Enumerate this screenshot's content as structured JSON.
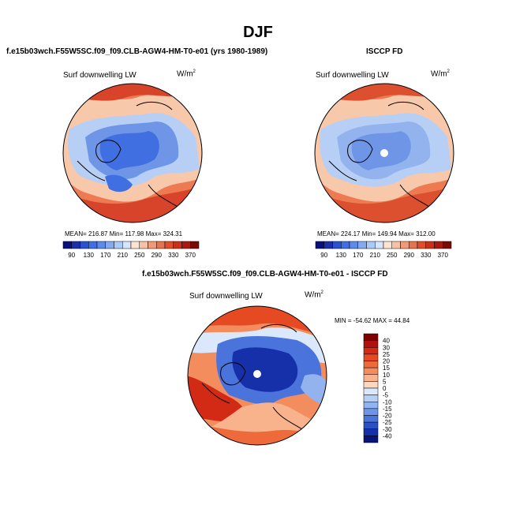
{
  "figure": {
    "title": "DJF",
    "left_case": "f.e15b03wch.F55W5SC.f09_f09.CLB-AGW4-HM-T0-e01 (yrs 1980-1989)",
    "right_case": "ISCCP FD",
    "diff_case": "f.e15b03wch.F55W5SC.f09_f09.CLB-AGW4-HM-T0-e01 - ISCCP FD"
  },
  "panels": {
    "model": {
      "variable": "Surf downwelling LW",
      "units": "W/m",
      "units_sup": "2",
      "stats": "MEAN= 216.87  Min= 117.98  Max= 324.31"
    },
    "obs": {
      "variable": "Surf downwelling LW",
      "units": "W/m",
      "units_sup": "2",
      "stats": "MEAN= 224.17  Min= 149.94  Max= 312.00"
    },
    "diff": {
      "variable": "Surf downwelling LW",
      "units": "W/m",
      "units_sup": "2",
      "stats": "MIN = -54.62  MAX =  44.84"
    }
  },
  "colorbar_horizontal": {
    "labels": [
      "90",
      "130",
      "170",
      "210",
      "250",
      "290",
      "330",
      "370"
    ],
    "colors": [
      "#08107a",
      "#1c2fa8",
      "#2b50d0",
      "#3f6fe0",
      "#5c8ce8",
      "#85aaf0",
      "#adc9f5",
      "#d7e6fa",
      "#fbe4d6",
      "#f6c1a4",
      "#f09a77",
      "#e8734f",
      "#dc4f2f",
      "#c8321b",
      "#a71a10",
      "#7a0a06"
    ]
  },
  "colorbar_vertical": {
    "labels": [
      "40",
      "30",
      "25",
      "20",
      "15",
      "10",
      "5",
      "0",
      "-5",
      "-10",
      "-15",
      "-20",
      "-25",
      "-30",
      "-40"
    ],
    "colors": [
      "#800000",
      "#b01010",
      "#d32a16",
      "#e64a22",
      "#ee6a3a",
      "#f38d5e",
      "#f8b28c",
      "#fcd8c0",
      "#dbe7fb",
      "#b8cff5",
      "#93b3ee",
      "#6f95e6",
      "#4a74dc",
      "#2a50c8",
      "#1530a8",
      "#081478"
    ]
  },
  "map_colors": {
    "deep_blue": "#1a35b8",
    "blue": "#3f6fe0",
    "mid_blue": "#6f95e6",
    "light_blue": "#b8cff5",
    "pale": "#eef3fb",
    "pale_orange": "#f8c8aa",
    "orange": "#ee7a52",
    "red": "#d8442a"
  }
}
